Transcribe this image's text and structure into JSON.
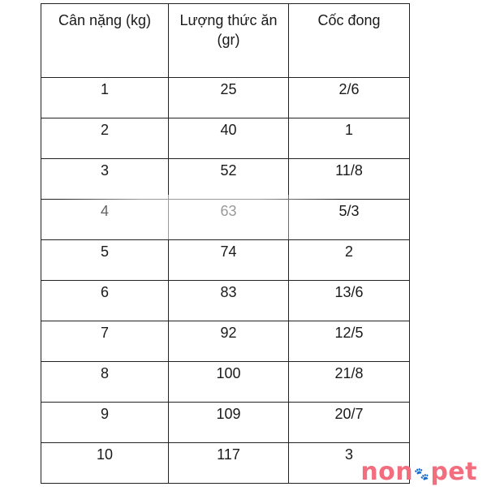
{
  "table": {
    "headers": [
      "Cân nặng (kg)",
      "Lượng thức ăn (gr)",
      "Cốc đong"
    ],
    "rows": [
      [
        "1",
        "25",
        "2/6"
      ],
      [
        "2",
        "40",
        "1"
      ],
      [
        "3",
        "52",
        "11/8"
      ],
      [
        "4",
        "63",
        "5/3"
      ],
      [
        "5",
        "74",
        "2"
      ],
      [
        "6",
        "83",
        "13/6"
      ],
      [
        "7",
        "92",
        "12/5"
      ],
      [
        "8",
        "100",
        "21/8"
      ],
      [
        "9",
        "109",
        "20/7"
      ],
      [
        "10",
        "117",
        "3"
      ]
    ]
  },
  "logo": {
    "text_before": "non",
    "text_after": "pet",
    "color": "#f26d7d"
  }
}
